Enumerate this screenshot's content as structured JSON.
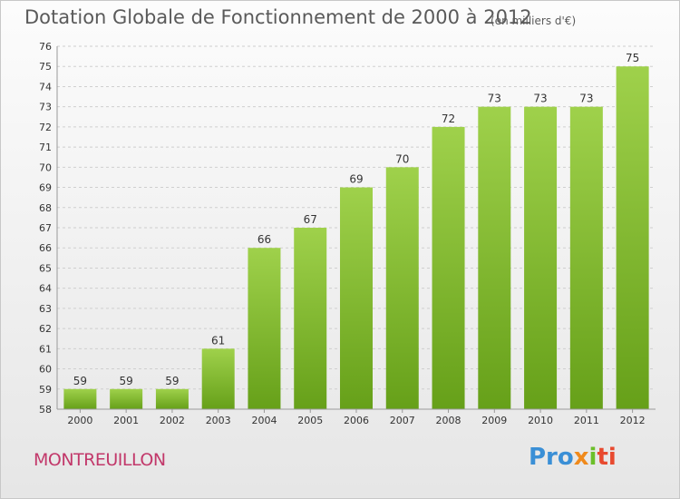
{
  "header": {
    "title": "Dotation Globale de Fonctionnement de 2000 à 2012",
    "unit_note": "(en milliers d'€)"
  },
  "footer": {
    "commune": "MONTREUILLON",
    "logo_parts": [
      "Pro",
      "x",
      "i",
      "ti"
    ]
  },
  "colors": {
    "bar_light": "#9fd14b",
    "bar_dark": "#66a019",
    "grid": "#cfcfcf",
    "axis_text": "#333333",
    "commune": "#c2386a"
  },
  "chart_data": {
    "type": "bar",
    "title": "Dotation Globale de Fonctionnement de 2000 à 2012",
    "subtitle": "(en milliers d'€)",
    "xlabel": "",
    "ylabel": "",
    "categories": [
      "2000",
      "2001",
      "2002",
      "2003",
      "2004",
      "2005",
      "2006",
      "2007",
      "2008",
      "2009",
      "2010",
      "2011",
      "2012"
    ],
    "values": [
      59,
      59,
      59,
      61,
      66,
      67,
      69,
      70,
      72,
      73,
      73,
      73,
      75
    ],
    "ylim": [
      58,
      76
    ],
    "yticks": [
      58,
      59,
      60,
      61,
      62,
      63,
      64,
      65,
      66,
      67,
      68,
      69,
      70,
      71,
      72,
      73,
      74,
      75,
      76
    ],
    "grid": true,
    "legend": "none"
  }
}
